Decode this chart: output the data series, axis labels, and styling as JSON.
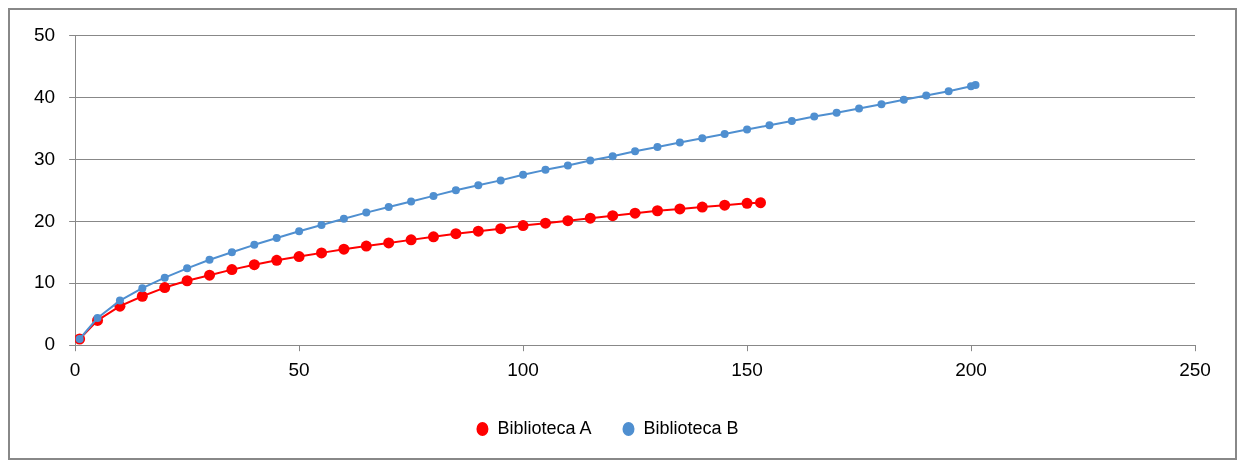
{
  "chart_data": {
    "type": "line",
    "xlim": [
      0,
      250
    ],
    "xticks": [
      0,
      50,
      100,
      150,
      200,
      250
    ],
    "ylim": [
      0,
      50
    ],
    "yticks": [
      0,
      10,
      20,
      30,
      40,
      50
    ],
    "grid": "y",
    "legend": "bottom",
    "marker": "circle",
    "line_style": "solid",
    "series": [
      {
        "name": "Biblioteca A",
        "color": "#ff0000",
        "x": [
          1,
          5,
          10,
          15,
          20,
          25,
          30,
          35,
          40,
          45,
          50,
          55,
          60,
          65,
          70,
          75,
          80,
          85,
          90,
          95,
          100,
          105,
          110,
          115,
          120,
          125,
          130,
          135,
          140,
          145,
          150,
          153
        ],
        "values": [
          1,
          4,
          6.3,
          7.9,
          9.3,
          10.4,
          11.3,
          12.2,
          13,
          13.7,
          14.3,
          14.9,
          15.5,
          16,
          16.5,
          17,
          17.5,
          18,
          18.4,
          18.8,
          19.3,
          19.7,
          20.1,
          20.5,
          20.9,
          21.3,
          21.7,
          22,
          22.3,
          22.6,
          22.9,
          23
        ]
      },
      {
        "name": "Biblioteca B",
        "color": "#4f8fd0",
        "x": [
          1,
          5,
          10,
          15,
          20,
          25,
          30,
          35,
          40,
          45,
          50,
          55,
          60,
          65,
          70,
          75,
          80,
          85,
          90,
          95,
          100,
          105,
          110,
          115,
          120,
          125,
          130,
          135,
          140,
          145,
          150,
          155,
          160,
          165,
          170,
          175,
          180,
          185,
          190,
          195,
          200,
          201
        ],
        "values": [
          1,
          4.4,
          7.2,
          9.2,
          10.9,
          12.4,
          13.8,
          15,
          16.2,
          17.3,
          18.4,
          19.4,
          20.4,
          21.4,
          22.3,
          23.2,
          24.1,
          25,
          25.8,
          26.6,
          27.5,
          28.3,
          29,
          29.8,
          30.5,
          31.3,
          32,
          32.7,
          33.4,
          34.1,
          34.8,
          35.5,
          36.2,
          36.9,
          37.5,
          38.2,
          38.9,
          39.6,
          40.3,
          41,
          41.8,
          42
        ]
      }
    ]
  }
}
